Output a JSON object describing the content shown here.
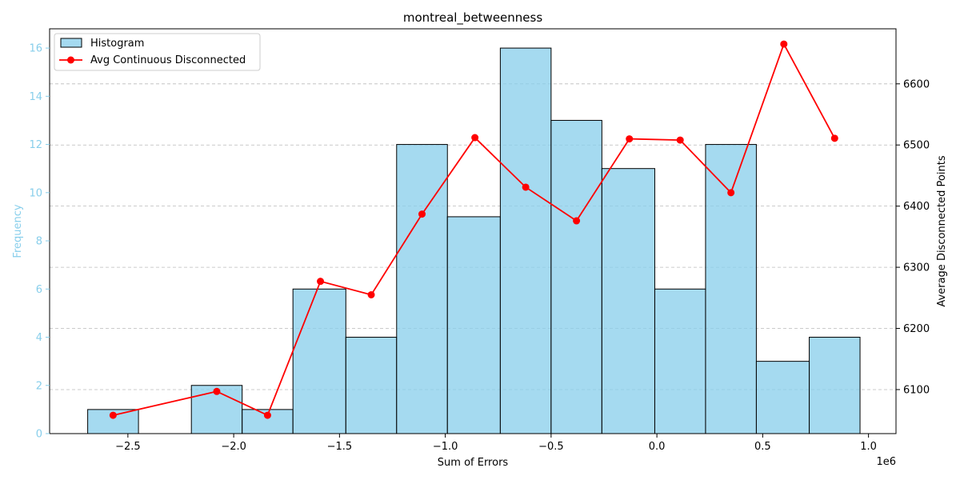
{
  "chart_data": {
    "type": "bar+line",
    "title": "montreal_betweenness",
    "xlabel": "Sum of Errors",
    "x_offset_label": "1e6",
    "ylabel_left": "Frequency",
    "ylabel_right": "Average Disconnected Points",
    "xlim": [
      -2.87,
      1.13
    ],
    "ylim_left": [
      0,
      16.8
    ],
    "ylim_right": [
      6028,
      6690
    ],
    "x_ticks": [
      -2.5,
      -2.0,
      -1.5,
      -1.0,
      -0.5,
      0.0,
      0.5,
      1.0
    ],
    "x_tick_labels": [
      "−2.5",
      "−2.0",
      "−1.5",
      "−1.0",
      "−0.5",
      "0.0",
      "0.5",
      "1.0"
    ],
    "y_left_ticks": [
      0,
      2,
      4,
      6,
      8,
      10,
      12,
      14,
      16
    ],
    "y_left_tick_labels": [
      "0",
      "2",
      "4",
      "6",
      "8",
      "10",
      "12",
      "14",
      "16"
    ],
    "y_right_ticks": [
      6100,
      6200,
      6300,
      6400,
      6500,
      6600
    ],
    "y_right_tick_labels": [
      "6100",
      "6200",
      "6300",
      "6400",
      "6500",
      "6600"
    ],
    "grid": "horizontal dashed",
    "legend_position": "top-left",
    "bin_edges": [
      -2.69,
      -2.45,
      -2.2,
      -1.96,
      -1.72,
      -1.47,
      -1.23,
      -0.99,
      -0.74,
      -0.5,
      -0.26,
      -0.01,
      0.23,
      0.47,
      0.72,
      0.96
    ],
    "series": [
      {
        "name": "Histogram",
        "kind": "bar",
        "axis": "left",
        "values": [
          1,
          0,
          2,
          1,
          6,
          4,
          12,
          9,
          16,
          13,
          11,
          6,
          12,
          3,
          4
        ]
      },
      {
        "name": "Avg Continuous Disconnected",
        "kind": "line",
        "axis": "right",
        "x": [
          -2.57,
          -2.08,
          -1.84,
          -1.59,
          -1.35,
          -1.11,
          -0.86,
          -0.62,
          -0.38,
          -0.13,
          0.11,
          0.35,
          0.6,
          0.84
        ],
        "y": [
          6058,
          6097,
          6058,
          6277,
          6255,
          6387,
          6512,
          6431,
          6376,
          6510,
          6508,
          6422,
          6665,
          6511
        ]
      }
    ],
    "colors": {
      "bar_fill": "#87ceeb",
      "bar_edge": "#000000",
      "line": "#ff0000",
      "left_axis": "#87ceeb",
      "grid": "#bbbbbb"
    }
  }
}
